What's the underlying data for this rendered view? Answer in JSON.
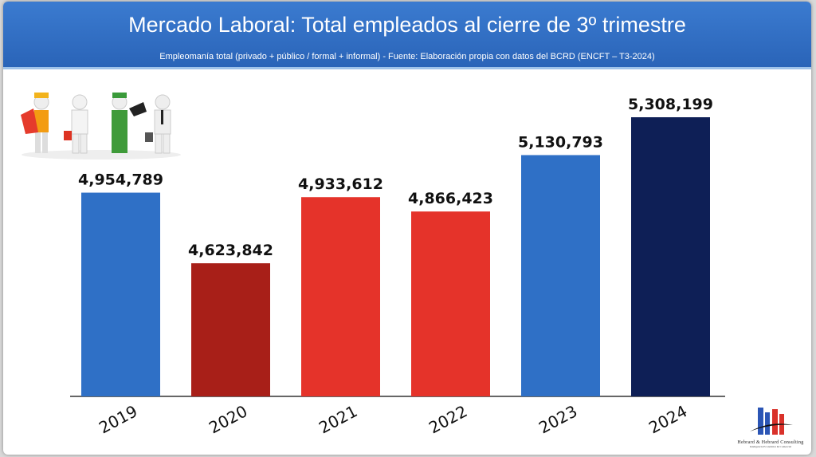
{
  "chart_data": {
    "type": "bar",
    "title": "Mercado Laboral: Total empleados al cierre de 3º trimestre",
    "subtitle": "Empleomanía total (privado + público / formal + informal) - Fuente: Elaboración propia con datos del BCRD (ENCFT – T3-2024)",
    "categories": [
      "2019",
      "2020",
      "2021",
      "2022",
      "2023",
      "2024"
    ],
    "values": [
      4954789,
      4623842,
      4933612,
      4866423,
      5130793,
      5308199
    ],
    "labels": [
      "4,954,789",
      "4,623,842",
      "4,933,612",
      "4,866,423",
      "5,130,793",
      "5,308,199"
    ],
    "colors": [
      "#2f70c6",
      "#a81f18",
      "#e5332a",
      "#e5332a",
      "#2f70c6",
      "#0e1f56"
    ],
    "ylim": [
      4000000,
      5308199
    ],
    "xlabel": "",
    "ylabel": "",
    "grid": false
  },
  "logo": {
    "name": "Hebrard & Hebrard Consulting",
    "tagline": "Inteligencia Económica & Comercial"
  }
}
